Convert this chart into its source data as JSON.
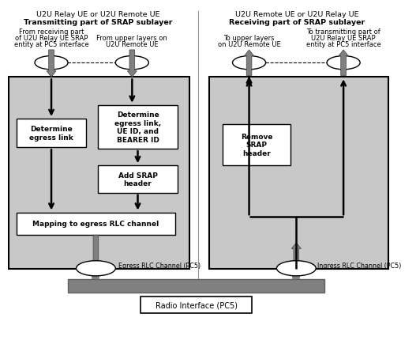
{
  "bg_color": "#ffffff",
  "gray_box_color": "#c8c8c8",
  "white_box_color": "#ffffff",
  "left_title_line1": "U2U Relay UE or U2U Remote UE",
  "left_title_line2": "Transmitting part of SRAP sublayer",
  "right_title_line1": "U2U Remote UE or U2U Relay UE",
  "right_title_line2": "Receiving part of SRAP sublayer",
  "left_label1": "From receiving part\nof U2U Relay UE SRAP\nentity at PC5 interface",
  "left_label2": "From upper layers on\nU2U Remote UE",
  "right_label1": "To upper layers\non U2U Remote UE",
  "right_label2": "To transmitting part of\nU2U Relay UE SRAP\nentity at PC5 interface",
  "box1_text": "Determine\negress link",
  "box2_text": "Determine\negress link,\nUE ID, and\nBEARER ID",
  "box3_text": "Add SRAP\nheader",
  "box4_text": "Mapping to egress RLC channel",
  "box5_text": "Remove\nSRAP\nheader",
  "egress_label": "Egress RLC Channel (PC5)",
  "ingress_label": "Ingress RLC Channel (PC5)",
  "radio_label": "Radio Interface (PC5)",
  "thick_arrow_color": "#707070",
  "thin_arrow_color": "#000000",
  "box_edge_color": "#000000",
  "divider_color": "#999999"
}
